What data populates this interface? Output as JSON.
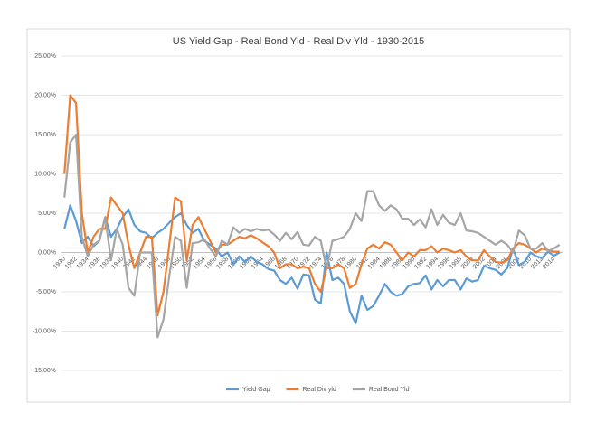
{
  "chart_data": {
    "type": "line",
    "title": "US Yield Gap - Real Bond Yld - Real Div Yld - 1930-2015",
    "categories": [
      "1930",
      null,
      "1932",
      null,
      "1934",
      null,
      "1936",
      null,
      "1938",
      null,
      "1940",
      null,
      "1942",
      null,
      "1944",
      null,
      "1946",
      null,
      "1948",
      null,
      "1950",
      null,
      "1952",
      null,
      "1954",
      null,
      "1956",
      null,
      "1958",
      null,
      "1960",
      null,
      "1962",
      null,
      "1964",
      null,
      "1966",
      null,
      "1968",
      null,
      "1970",
      null,
      "1972",
      null,
      "1974",
      null,
      "1976",
      null,
      "1978",
      null,
      "1980",
      null,
      "1982",
      null,
      "1984",
      null,
      "1986",
      null,
      "1988",
      null,
      "1990",
      null,
      "1992",
      null,
      "1994",
      null,
      "1996",
      null,
      "1998",
      null,
      "2000",
      null,
      "2002",
      null,
      "2004",
      null,
      "2006",
      null,
      "2008",
      null,
      "2010",
      null,
      "2012",
      null,
      "2014",
      null
    ],
    "series": [
      {
        "name": "Yield Gap",
        "color": "#5b9bd5",
        "values": [
          3,
          6,
          4,
          1.2,
          2,
          0.8,
          1.5,
          4.5,
          2,
          3,
          4.5,
          5.5,
          3.5,
          2.7,
          2.5,
          1.8,
          2.5,
          3,
          3.8,
          4.5,
          5,
          3.5,
          2.5,
          3,
          1.5,
          1,
          0.5,
          -0.5,
          0,
          -1.5,
          -0.5,
          -1.2,
          -0.5,
          -1.2,
          -1.5,
          -2.1,
          -2.3,
          -3.5,
          -4,
          -3.2,
          -4.6,
          -2.8,
          -2.9,
          -6,
          -6.5,
          0,
          -3.5,
          -3.2,
          -4,
          -7.5,
          -9,
          -5.5,
          -7.3,
          -6.8,
          -5.5,
          -4,
          -5,
          -5.5,
          -5.3,
          -4.3,
          -4,
          -3.9,
          -2.9,
          -4.7,
          -3.5,
          -4.3,
          -3.5,
          -3.5,
          -4.7,
          -3.3,
          -3.7,
          -3.5,
          -1.7,
          -2,
          -2.2,
          -2.8,
          -2,
          0.5,
          -1.6,
          -1.2,
          0,
          -0.5,
          -0.7,
          0.1,
          -0.4,
          0
        ]
      },
      {
        "name": "Real Div yld",
        "color": "#ed7d31",
        "values": [
          10,
          20,
          19,
          5,
          0,
          2,
          3,
          3,
          7,
          6,
          5,
          1,
          -2,
          0,
          2,
          2,
          -8,
          -5,
          1,
          7,
          6.5,
          -1,
          3.5,
          4.5,
          3,
          1.5,
          0,
          1,
          1,
          1.5,
          2,
          1.8,
          2.2,
          1.8,
          1.3,
          0.8,
          0,
          -2,
          -1.5,
          -1.5,
          -2,
          -1.8,
          -2,
          -4,
          -5,
          -2,
          -2,
          -1.5,
          -2,
          -4.5,
          -4,
          -1.5,
          0.5,
          1,
          0.5,
          1.3,
          1,
          0,
          -1,
          0,
          -0.5,
          0.3,
          0.3,
          0.8,
          0,
          0.5,
          0.3,
          0,
          0.3,
          -0.5,
          -1,
          -1,
          0.3,
          -0.5,
          -1.2,
          -1.3,
          -1,
          0.5,
          1.2,
          1,
          0.5,
          0,
          0.5,
          0.3,
          0.1,
          0.1
        ]
      },
      {
        "name": "Real Bond Yld",
        "color": "#a5a5a5",
        "values": [
          7,
          14,
          15,
          2,
          -0.5,
          1,
          1.5,
          4.5,
          -1,
          3,
          1,
          -4.5,
          -5.5,
          0,
          0,
          0,
          -10.8,
          -8.5,
          -3,
          2,
          1.5,
          -4.5,
          1.2,
          1.3,
          1.7,
          0.5,
          -0.5,
          1.5,
          1,
          3.2,
          2.5,
          3,
          2.7,
          3,
          2.8,
          2.9,
          2.3,
          1.5,
          2.5,
          1.7,
          2.6,
          1,
          0.9,
          2,
          1.5,
          -2,
          1.5,
          1.7,
          2,
          3,
          5,
          4,
          7.8,
          7.8,
          6,
          5.3,
          6,
          5.5,
          4.3,
          4.3,
          3.5,
          4.2,
          3.2,
          5.5,
          3.5,
          4.8,
          3.8,
          3.5,
          5,
          2.8,
          2.7,
          2.5,
          2,
          1.5,
          1,
          1.5,
          1,
          0,
          2.8,
          2.2,
          0.5,
          0.5,
          1.2,
          0.2,
          0.5,
          1
        ]
      }
    ],
    "ylim": [
      -15,
      25
    ],
    "yticks": [
      {
        "value": -15,
        "label": "-15.00%"
      },
      {
        "value": -10,
        "label": "-10.00%"
      },
      {
        "value": -5,
        "label": "-5.00%"
      },
      {
        "value": 0,
        "label": "0.00%"
      },
      {
        "value": 5,
        "label": "5.00%"
      },
      {
        "value": 10,
        "label": "10.00%"
      },
      {
        "value": 15,
        "label": "15.00%"
      },
      {
        "value": 20,
        "label": "20.00%"
      },
      {
        "value": 25,
        "label": "25.00%"
      }
    ],
    "grid": true,
    "legend": "bottom"
  }
}
